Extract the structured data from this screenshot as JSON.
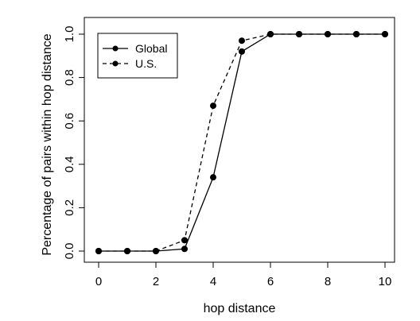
{
  "chart_data": {
    "type": "line",
    "title": "",
    "xlabel": "hop distance",
    "ylabel": "Percentage of pairs within hop distance",
    "x": [
      0,
      1,
      2,
      3,
      4,
      5,
      6,
      7,
      8,
      9,
      10
    ],
    "xlim": [
      0,
      10
    ],
    "ylim": [
      0,
      1
    ],
    "xticks": [
      "0",
      "2",
      "4",
      "6",
      "8",
      "10"
    ],
    "yticks": [
      "0.0",
      "0.2",
      "0.4",
      "0.6",
      "0.8",
      "1.0"
    ],
    "grid": false,
    "legend_position": "top-left",
    "series": [
      {
        "name": "Global",
        "line_style": "solid",
        "marker": "filled-circle",
        "color": "#000000",
        "values": [
          0.0,
          0.0,
          0.0,
          0.01,
          0.34,
          0.92,
          1.0,
          1.0,
          1.0,
          1.0,
          1.0
        ]
      },
      {
        "name": "U.S.",
        "line_style": "dashed",
        "marker": "filled-circle",
        "color": "#000000",
        "values": [
          0.0,
          0.0,
          0.0,
          0.05,
          0.67,
          0.97,
          1.0,
          1.0,
          1.0,
          1.0,
          1.0
        ]
      }
    ]
  }
}
